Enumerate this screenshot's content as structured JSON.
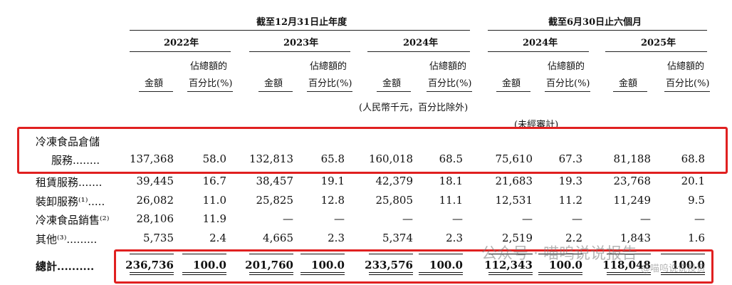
{
  "header": {
    "group_annual": "截至12月31日止年度",
    "group_six_month": "截至6月30日止六個月",
    "years": [
      "2022年",
      "2023年",
      "2024年",
      "2024年",
      "2025年"
    ],
    "amount_label": "金額",
    "pct_label_line1": "佔總額的",
    "pct_label_line2": "百分比(%)",
    "unit_note": "(人民幣千元，百分比除外)",
    "unaudited_note": "(未經審計)"
  },
  "rows": [
    {
      "label_line1": "冷凍食品倉儲",
      "label": "服務........",
      "values": [
        "137,368",
        "58.0",
        "132,813",
        "65.8",
        "160,018",
        "68.5",
        "75,610",
        "67.3",
        "81,188",
        "68.8"
      ]
    },
    {
      "label": "租賃服務.......",
      "values": [
        "39,445",
        "16.7",
        "38,457",
        "19.1",
        "42,379",
        "18.1",
        "21,683",
        "19.3",
        "23,768",
        "20.1"
      ]
    },
    {
      "label": "裝卸服務⁽¹⁾.....",
      "values": [
        "26,082",
        "11.0",
        "25,825",
        "12.8",
        "25,805",
        "11.1",
        "12,531",
        "11.2",
        "11,249",
        "9.5"
      ]
    },
    {
      "label": "冷凍食品銷售⁽²⁾",
      "values": [
        "28,106",
        "11.9",
        "—",
        "—",
        "—",
        "—",
        "—",
        "—",
        "—",
        "—"
      ]
    },
    {
      "label": "其他⁽³⁾.........",
      "values": [
        "5,735",
        "2.4",
        "4,665",
        "2.3",
        "5,374",
        "2.3",
        "2,519",
        "2.2",
        "1,843",
        "1.6"
      ]
    },
    {
      "label": "總計..........",
      "values": [
        "236,736",
        "100.0",
        "201,760",
        "100.0",
        "233,576",
        "100.0",
        "112,343",
        "100.0",
        "118,048",
        "100.0"
      ]
    }
  ],
  "watermark": {
    "text": "公众号 · 喵呜说说报告",
    "sub": "@喵呜说说投资"
  },
  "colors": {
    "highlight": "#e02020",
    "text": "#111111"
  }
}
